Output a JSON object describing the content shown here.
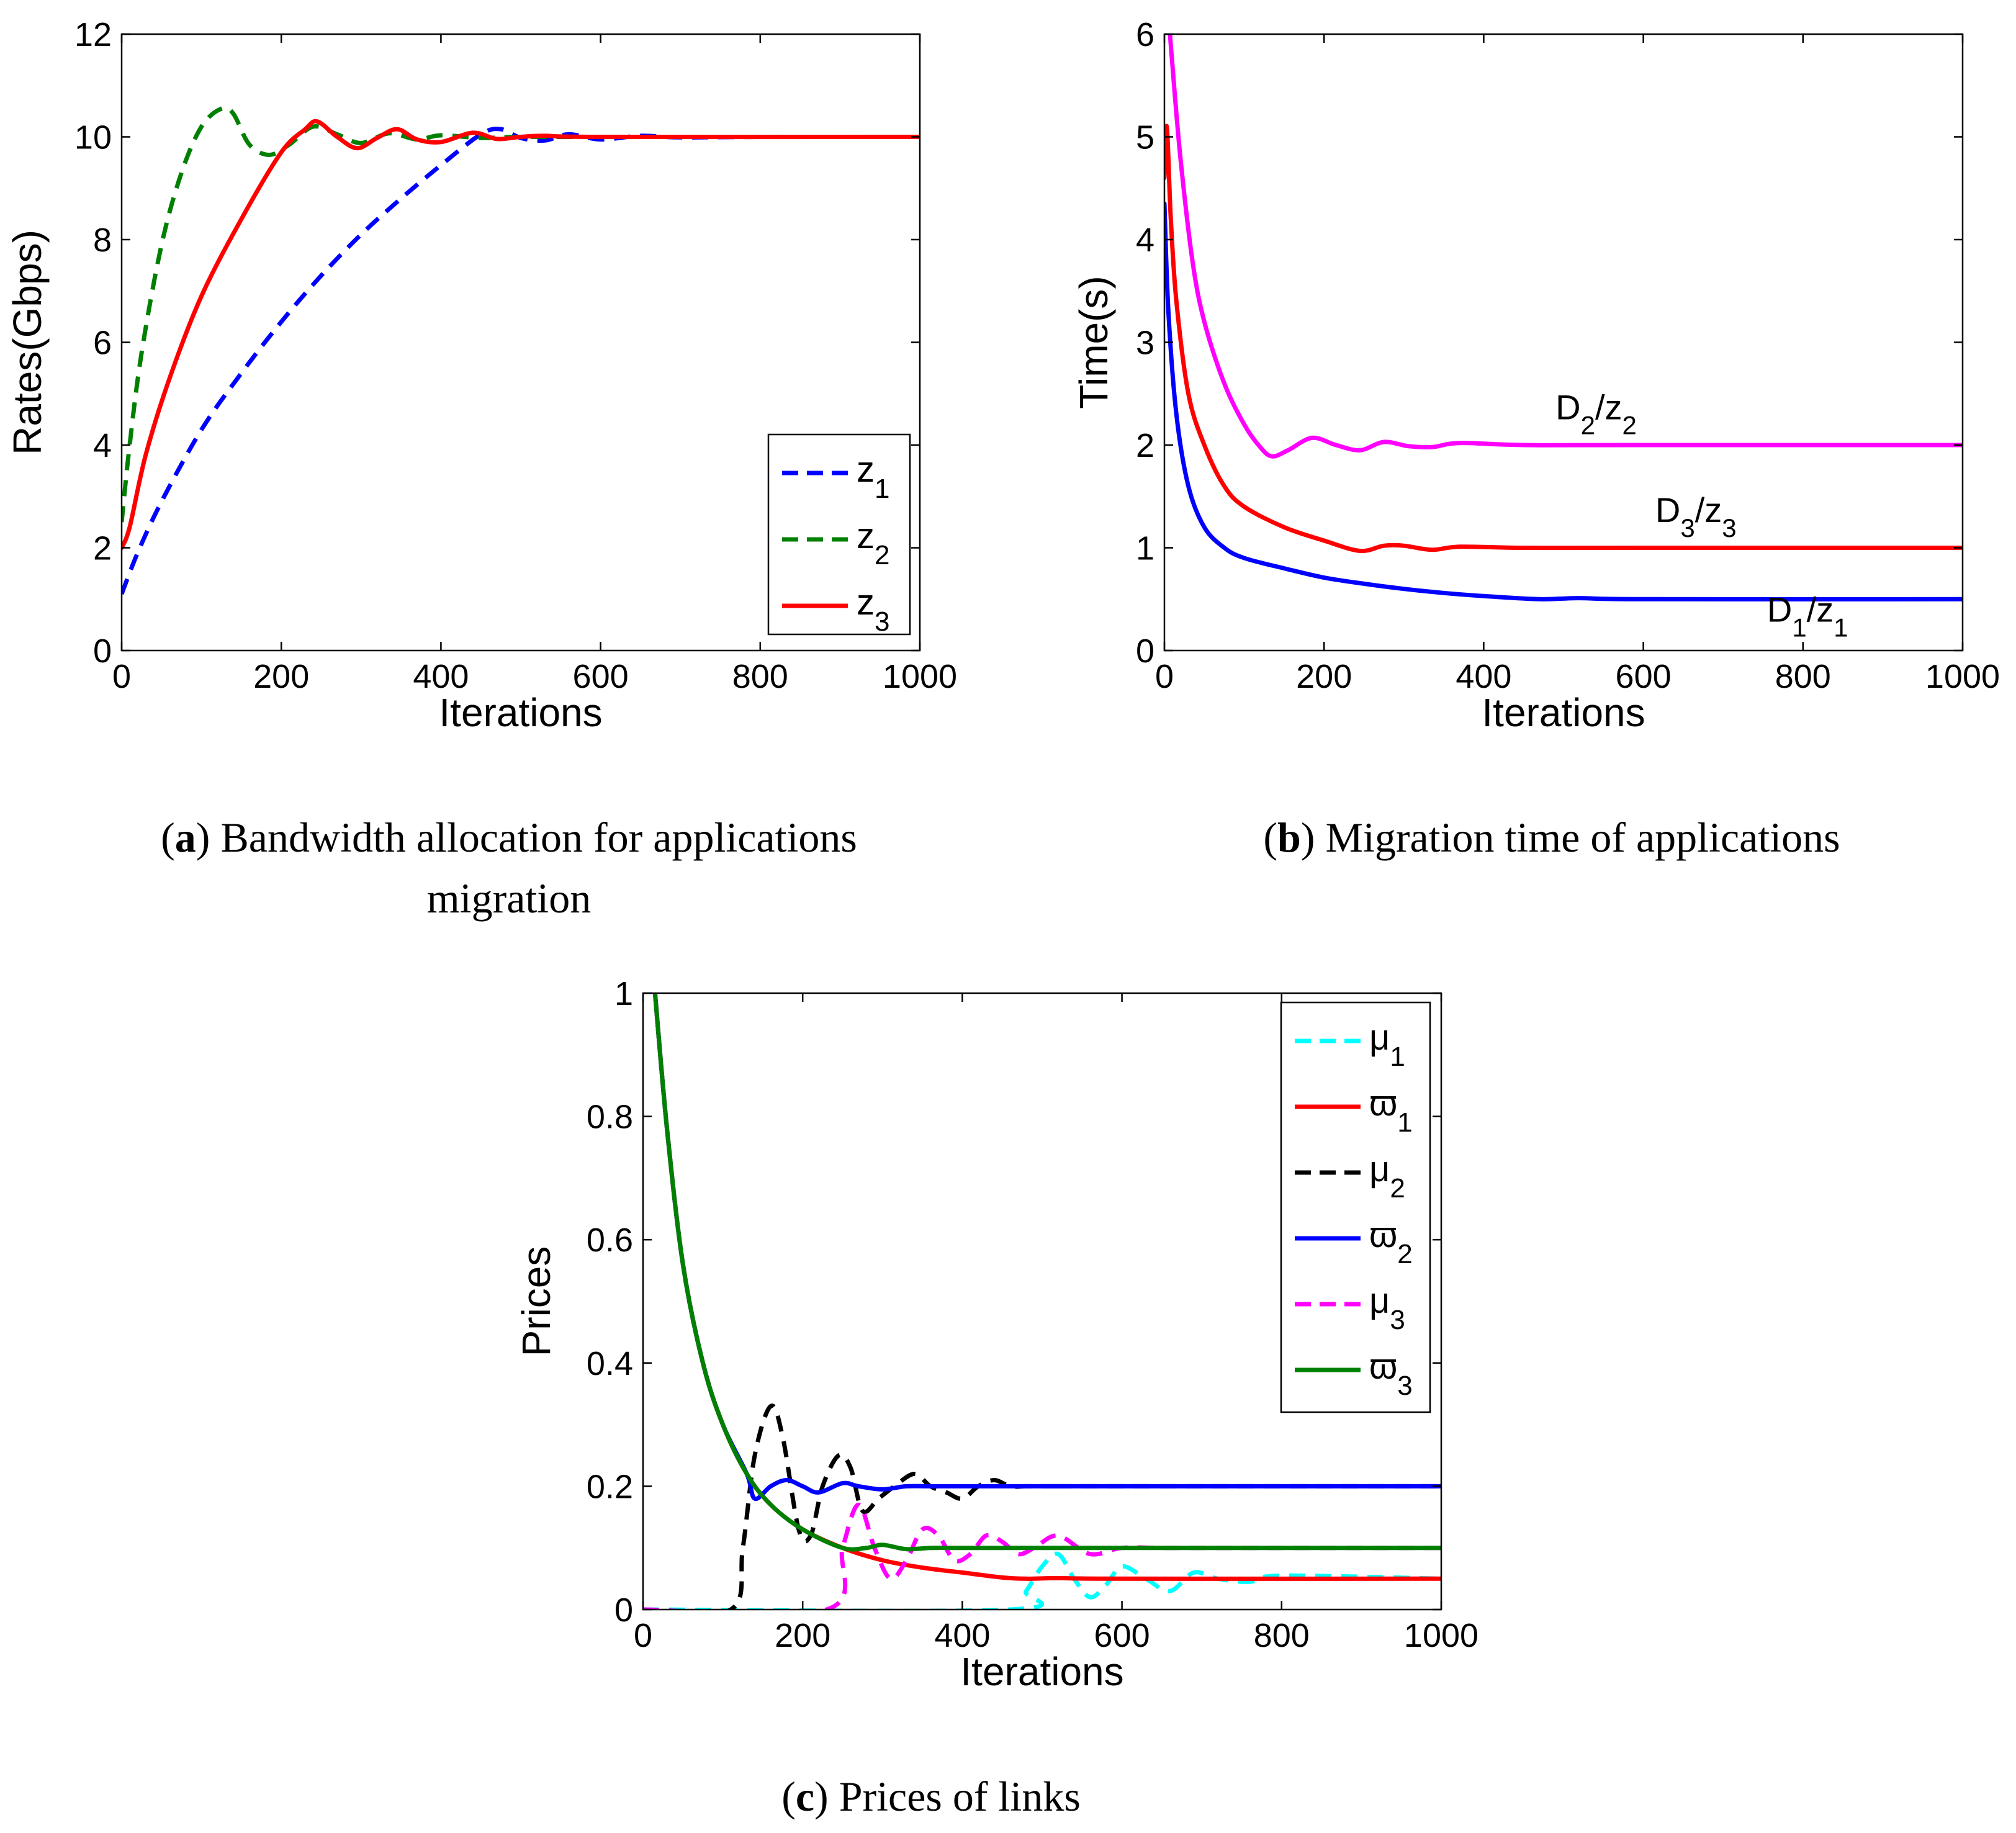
{
  "chart_data": [
    {
      "id": "a",
      "type": "line",
      "xlabel": "Iterations",
      "ylabel": "Rates(Gbps)",
      "xlim": [
        0,
        1000
      ],
      "ylim": [
        0,
        12
      ],
      "xticks": [
        0,
        200,
        400,
        600,
        800,
        1000
      ],
      "yticks": [
        0,
        2,
        4,
        6,
        8,
        10,
        12
      ],
      "legend_position": "lower-right",
      "series": [
        {
          "name": "z_1",
          "label_main": "z",
          "label_sub": "1",
          "color": "#0000ff",
          "dash": true,
          "x": [
            0,
            20,
            50,
            100,
            150,
            200,
            250,
            300,
            350,
            400,
            450,
            475,
            500,
            530,
            560,
            600,
            650,
            700,
            800,
            1000
          ],
          "y": [
            1.1,
            1.9,
            2.9,
            4.3,
            5.4,
            6.4,
            7.3,
            8.1,
            8.8,
            9.45,
            10.05,
            10.15,
            9.98,
            9.93,
            10.05,
            9.95,
            10.02,
            9.99,
            10.0,
            10.0
          ]
        },
        {
          "name": "z_2",
          "label_main": "z",
          "label_sub": "2",
          "color": "#008000",
          "dash": true,
          "x": [
            0,
            10,
            25,
            50,
            75,
            100,
            125,
            140,
            160,
            185,
            210,
            240,
            270,
            300,
            335,
            370,
            400,
            450,
            500,
            600,
            1000
          ],
          "y": [
            2.5,
            4.0,
            5.8,
            7.9,
            9.3,
            10.2,
            10.55,
            10.45,
            9.85,
            9.65,
            9.85,
            10.2,
            10.05,
            9.88,
            10.07,
            9.95,
            10.03,
            9.98,
            10.0,
            10.0,
            10.0
          ]
        },
        {
          "name": "z_3",
          "label_main": "z",
          "label_sub": "3",
          "color": "#ff0000",
          "dash": false,
          "x": [
            0,
            10,
            30,
            60,
            100,
            150,
            200,
            230,
            245,
            270,
            295,
            320,
            345,
            370,
            400,
            440,
            470,
            500,
            530,
            600,
            1000
          ],
          "y": [
            2.0,
            2.4,
            3.8,
            5.3,
            6.9,
            8.4,
            9.7,
            10.15,
            10.3,
            10.0,
            9.78,
            9.98,
            10.15,
            9.95,
            9.9,
            10.08,
            9.96,
            10.0,
            10.02,
            10.0,
            10.0
          ]
        }
      ]
    },
    {
      "id": "b",
      "type": "line",
      "xlabel": "Iterations",
      "ylabel": "Time(s)",
      "xlim": [
        0,
        1000
      ],
      "ylim": [
        0,
        6
      ],
      "xticks": [
        0,
        200,
        400,
        600,
        800,
        1000
      ],
      "yticks": [
        0,
        1,
        2,
        3,
        4,
        5,
        6
      ],
      "series": [
        {
          "name": "D_2/z_2",
          "color": "#ff00ff",
          "dash": false,
          "x": [
            7,
            10,
            20,
            35,
            50,
            75,
            100,
            120,
            135,
            155,
            185,
            215,
            245,
            275,
            305,
            335,
            370,
            450,
            600,
            1000
          ],
          "y": [
            6.0,
            5.7,
            4.8,
            3.8,
            3.2,
            2.6,
            2.2,
            1.98,
            1.89,
            1.95,
            2.07,
            2.0,
            1.95,
            2.03,
            1.99,
            1.98,
            2.02,
            2.0,
            2.0,
            2.0
          ]
        },
        {
          "name": "D_3/z_3",
          "color": "#ff0000",
          "dash": false,
          "x": [
            0,
            3,
            8,
            15,
            30,
            50,
            75,
            100,
            150,
            200,
            245,
            275,
            300,
            335,
            370,
            450,
            600,
            1000
          ],
          "y": [
            4.6,
            5.1,
            4.2,
            3.4,
            2.5,
            2.0,
            1.6,
            1.4,
            1.2,
            1.07,
            0.97,
            1.02,
            1.02,
            0.98,
            1.01,
            1.0,
            1.0,
            1.0
          ]
        },
        {
          "name": "D_1/z_1",
          "color": "#0000ff",
          "dash": false,
          "x": [
            0,
            5,
            15,
            30,
            50,
            75,
            100,
            150,
            200,
            250,
            300,
            350,
            400,
            470,
            520,
            600,
            1000
          ],
          "y": [
            4.35,
            3.3,
            2.3,
            1.6,
            1.2,
            1.0,
            0.9,
            0.8,
            0.71,
            0.65,
            0.6,
            0.56,
            0.53,
            0.5,
            0.51,
            0.5,
            0.5
          ]
        }
      ],
      "annotations": [
        {
          "main": "D",
          "sub1": "2",
          "sep": "/z",
          "sub2": "2",
          "at_x": 490,
          "at_y": 2.25
        },
        {
          "main": "D",
          "sub1": "3",
          "sep": "/z",
          "sub2": "3",
          "at_x": 615,
          "at_y": 1.25
        },
        {
          "main": "D",
          "sub1": "1",
          "sep": "/z",
          "sub2": "1",
          "at_x": 755,
          "at_y": 0.28
        }
      ]
    },
    {
      "id": "c",
      "type": "line",
      "xlabel": "Iterations",
      "ylabel": "Prices",
      "xlim": [
        0,
        1000
      ],
      "ylim": [
        0,
        1
      ],
      "xticks": [
        0,
        200,
        400,
        600,
        800,
        1000
      ],
      "yticks": [
        0,
        0.2,
        0.4,
        0.6,
        0.8,
        1
      ],
      "ytick_labels": [
        "0",
        "0.2",
        "0.4",
        "0.6",
        "0.8",
        "1"
      ],
      "legend_position": "upper-right",
      "series": [
        {
          "name": "μ_1",
          "label_main": "μ",
          "label_sub": "1",
          "color": "#00ffff",
          "dash": true,
          "x": [
            0,
            460,
            480,
            500,
            520,
            540,
            560,
            580,
            600,
            630,
            660,
            690,
            720,
            760,
            800,
            1000
          ],
          "y": [
            0,
            0,
            0.03,
            0.07,
            0.09,
            0.05,
            0.02,
            0.04,
            0.07,
            0.05,
            0.03,
            0.06,
            0.05,
            0.045,
            0.055,
            0.05
          ]
        },
        {
          "name": "ϖ_1",
          "label_main": "ϖ",
          "label_sub": "1",
          "color": "#ff0000",
          "dash": false,
          "x": [
            15,
            30,
            50,
            75,
            100,
            130,
            160,
            200,
            250,
            300,
            350,
            400,
            450,
            480,
            520,
            600,
            1000
          ],
          "y": [
            1.0,
            0.78,
            0.56,
            0.4,
            0.3,
            0.22,
            0.17,
            0.13,
            0.1,
            0.08,
            0.068,
            0.06,
            0.052,
            0.05,
            0.051,
            0.05,
            0.05
          ]
        },
        {
          "name": "μ_2",
          "label_main": "μ",
          "label_sub": "2",
          "color": "#000000",
          "dash": true,
          "x": [
            0,
            110,
            125,
            140,
            160,
            175,
            195,
            210,
            225,
            245,
            260,
            275,
            295,
            315,
            340,
            360,
            380,
            400,
            420,
            440,
            460,
            480,
            500,
            520,
            560,
            1000
          ],
          "y": [
            0,
            0,
            0.1,
            0.25,
            0.33,
            0.28,
            0.13,
            0.12,
            0.2,
            0.25,
            0.23,
            0.16,
            0.18,
            0.2,
            0.22,
            0.2,
            0.19,
            0.18,
            0.2,
            0.21,
            0.2,
            0.2,
            0.2,
            0.2,
            0.2,
            0.2
          ]
        },
        {
          "name": "ϖ_2",
          "label_main": "ϖ",
          "label_sub": "2",
          "color": "#0000ff",
          "dash": false,
          "x": [
            15,
            30,
            50,
            75,
            100,
            130,
            140,
            160,
            180,
            200,
            220,
            250,
            270,
            300,
            330,
            360,
            400,
            500,
            1000
          ],
          "y": [
            1.0,
            0.78,
            0.56,
            0.4,
            0.3,
            0.22,
            0.18,
            0.2,
            0.21,
            0.2,
            0.19,
            0.205,
            0.2,
            0.195,
            0.2,
            0.2,
            0.2,
            0.2,
            0.2
          ]
        },
        {
          "name": "μ_3",
          "label_main": "μ",
          "label_sub": "3",
          "color": "#ff00ff",
          "dash": true,
          "x": [
            0,
            230,
            250,
            270,
            290,
            310,
            330,
            350,
            370,
            390,
            410,
            430,
            450,
            470,
            490,
            520,
            560,
            600,
            650,
            700,
            1000
          ],
          "y": [
            0,
            0,
            0.1,
            0.17,
            0.1,
            0.05,
            0.08,
            0.13,
            0.12,
            0.08,
            0.09,
            0.12,
            0.11,
            0.09,
            0.1,
            0.12,
            0.09,
            0.1,
            0.1,
            0.1,
            0.1
          ]
        },
        {
          "name": "ϖ_3",
          "label_main": "ϖ",
          "label_sub": "3",
          "color": "#008000",
          "dash": false,
          "x": [
            15,
            30,
            50,
            75,
            100,
            130,
            160,
            200,
            250,
            280,
            300,
            330,
            360,
            400,
            500,
            1000
          ],
          "y": [
            1.0,
            0.78,
            0.56,
            0.4,
            0.3,
            0.22,
            0.17,
            0.13,
            0.1,
            0.1,
            0.105,
            0.098,
            0.1,
            0.1,
            0.1,
            0.1
          ]
        }
      ]
    }
  ],
  "captions": {
    "a": {
      "label": "a",
      "text": " Bandwidth allocation for applications migration"
    },
    "b": {
      "label": "b",
      "text": " Migration time of applications"
    },
    "c": {
      "label": "c",
      "text": " Prices of links"
    }
  }
}
